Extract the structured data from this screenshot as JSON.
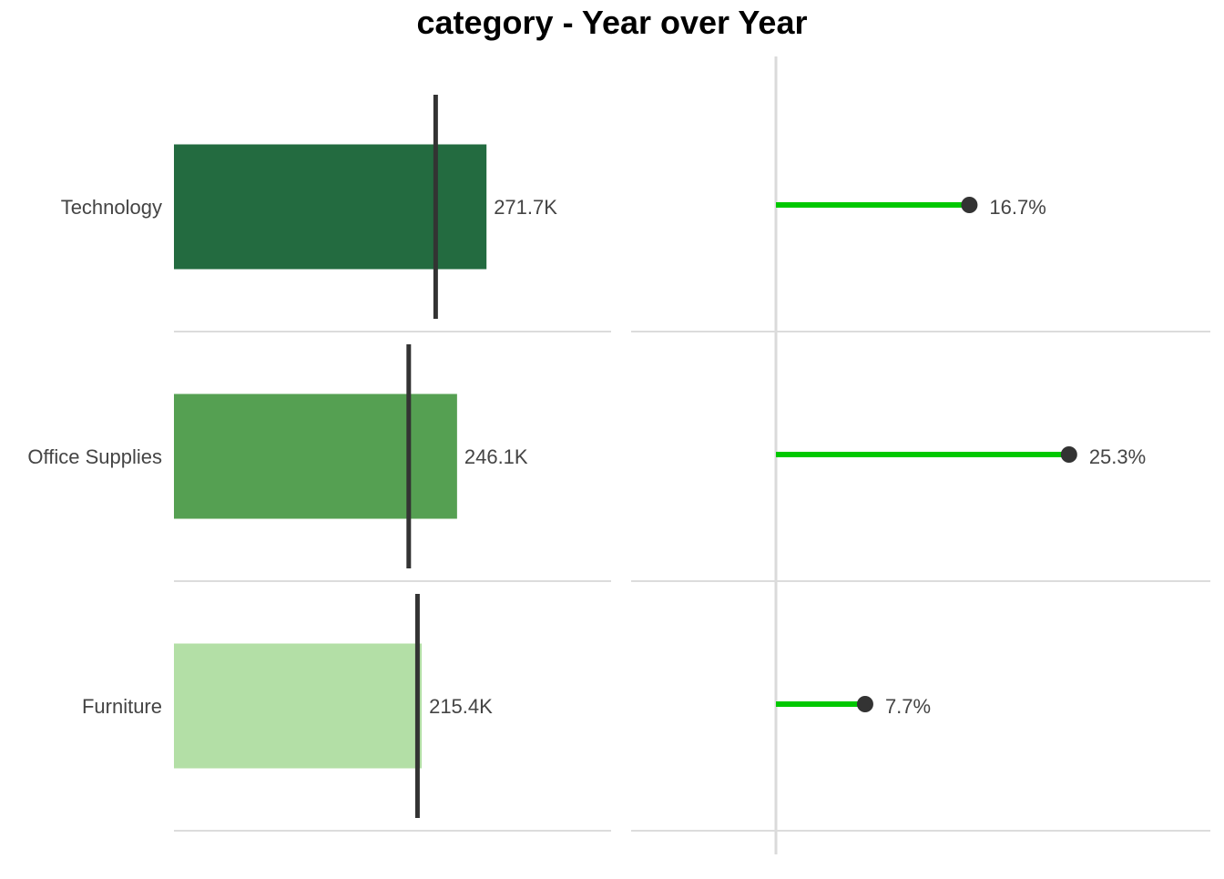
{
  "chart_data": {
    "title": "category - Year over Year",
    "categories": [
      "Technology",
      "Office Supplies",
      "Furniture"
    ],
    "panels": [
      {
        "type": "bar",
        "name": "current",
        "values": [
          271.7,
          246.1,
          215.4
        ],
        "value_labels": [
          "271.7K",
          "246.1K",
          "215.4K"
        ],
        "reference_values": [
          227.5,
          204.1,
          211.7
        ],
        "bar_colors": [
          "#236b40",
          "#55a052",
          "#b3dfa6"
        ],
        "reference_color": "#333333",
        "xlim": [
          0,
          380
        ],
        "grid": "horizontal-separators"
      },
      {
        "type": "lollipop",
        "name": "yoy-change",
        "values": [
          16.7,
          25.3,
          7.7
        ],
        "value_labels": [
          "16.7%",
          "25.3%",
          "7.7%"
        ],
        "line_color": "#00c800",
        "point_color": "#333333",
        "xlim": [
          0,
          37.5
        ],
        "grid": "horizontal-separators"
      }
    ]
  }
}
